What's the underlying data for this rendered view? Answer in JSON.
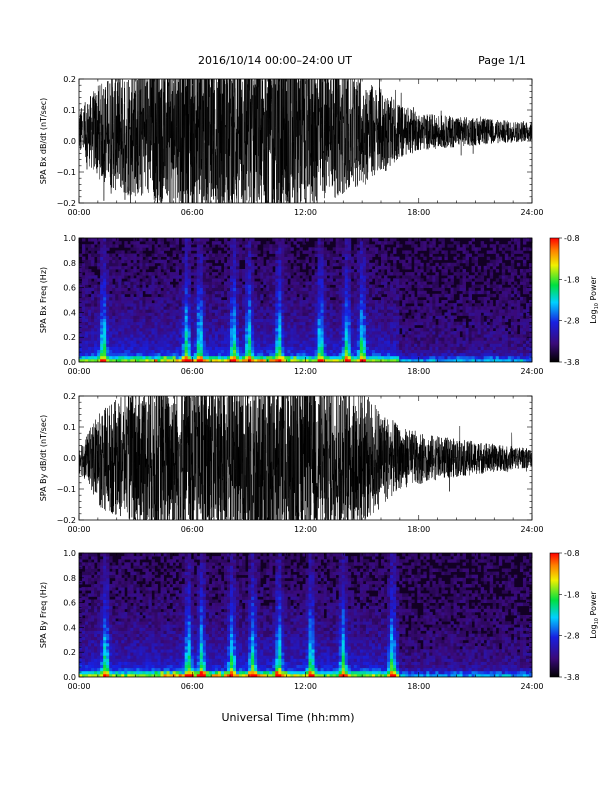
{
  "header": {
    "title": "2016/10/14  00:00–24:00 UT",
    "page": "Page 1/1"
  },
  "colorbar_ticks": [
    "-0.8",
    "-1.8",
    "-2.8",
    "-3.8"
  ],
  "colorbar_label_base": "Log",
  "colorbar_label_sub": "10",
  "colorbar_label_rest": " Power",
  "chart_data": [
    {
      "type": "line",
      "ylabel": "SPA Bx dB/dt (nT/sec)",
      "xlabel": "",
      "x_range_hours": [
        0,
        24
      ],
      "xticks": [
        "00:00",
        "06:00",
        "12:00",
        "18:00",
        "24:00"
      ],
      "ylim": [
        -0.2,
        0.2
      ],
      "yticks": [
        "−0.2",
        "−0.1",
        "0.0",
        "0.1",
        "0.2"
      ],
      "mean": 0.03,
      "amplitude_envelope": [
        {
          "hour": 0,
          "amp": 0.07
        },
        {
          "hour": 1,
          "amp": 0.15
        },
        {
          "hour": 2,
          "amp": 0.2
        },
        {
          "hour": 5,
          "amp": 0.25
        },
        {
          "hour": 11,
          "amp": 0.3
        },
        {
          "hour": 14,
          "amp": 0.2
        },
        {
          "hour": 16,
          "amp": 0.14
        },
        {
          "hour": 17,
          "amp": 0.09
        },
        {
          "hour": 18,
          "amp": 0.06
        },
        {
          "hour": 24,
          "amp": 0.03
        }
      ]
    },
    {
      "type": "heatmap",
      "ylabel": "SPA Bx Freq (Hz)",
      "xlabel": "",
      "x_range_hours": [
        0,
        24
      ],
      "xticks": [
        "00:00",
        "06:00",
        "12:00",
        "18:00",
        "24:00"
      ],
      "ylim": [
        0,
        1.0
      ],
      "yticks": [
        "0.0",
        "0.2",
        "0.4",
        "0.6",
        "0.8",
        "1.0"
      ],
      "zlim": [
        -3.8,
        -0.8
      ],
      "bursts_hours": [
        1.3,
        5.7,
        6.4,
        8.2,
        9.0,
        10.6,
        12.8,
        14.2,
        15.0
      ]
    },
    {
      "type": "line",
      "ylabel": "SPA By dB/dt (nT/sec)",
      "xlabel": "",
      "x_range_hours": [
        0,
        24
      ],
      "xticks": [
        "00:00",
        "06:00",
        "12:00",
        "18:00",
        "24:00"
      ],
      "ylim": [
        -0.2,
        0.2
      ],
      "yticks": [
        "−0.2",
        "−0.1",
        "0.0",
        "0.1",
        "0.2"
      ],
      "mean": 0.0,
      "amplitude_envelope": [
        {
          "hour": 0,
          "amp": 0.05
        },
        {
          "hour": 0.5,
          "amp": 0.08
        },
        {
          "hour": 1,
          "amp": 0.16
        },
        {
          "hour": 4,
          "amp": 0.25
        },
        {
          "hour": 11,
          "amp": 0.3
        },
        {
          "hour": 15,
          "amp": 0.22
        },
        {
          "hour": 17,
          "amp": 0.1
        },
        {
          "hour": 19,
          "amp": 0.07
        },
        {
          "hour": 24,
          "amp": 0.03
        }
      ]
    },
    {
      "type": "heatmap",
      "ylabel": "SPA By Freq (Hz)",
      "xlabel": "Universal Time (hh:mm)",
      "x_range_hours": [
        0,
        24
      ],
      "xticks": [
        "00:00",
        "06:00",
        "12:00",
        "18:00",
        "24:00"
      ],
      "ylim": [
        0,
        1.0
      ],
      "yticks": [
        "0.0",
        "0.2",
        "0.4",
        "0.6",
        "0.8",
        "1.0"
      ],
      "zlim": [
        -3.8,
        -0.8
      ],
      "bursts_hours": [
        1.4,
        5.8,
        6.5,
        8.1,
        9.2,
        10.6,
        12.3,
        14.0,
        16.6
      ]
    }
  ]
}
